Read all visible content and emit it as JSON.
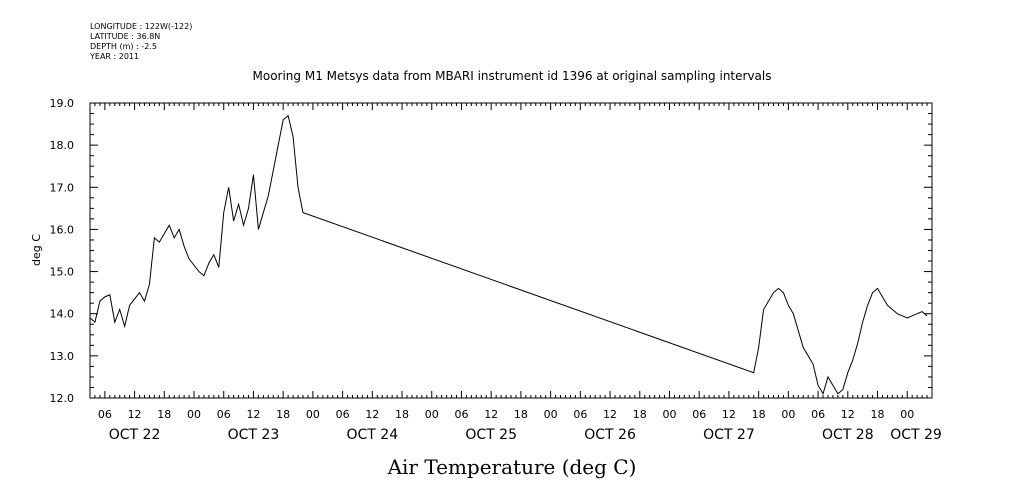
{
  "metadata": {
    "longitude": "LONGITUDE : 122W(-122)",
    "latitude": "LATITUDE : 36.8N",
    "depth": "DEPTH (m) : -2.5",
    "year": "YEAR : 2011"
  },
  "chart_data": {
    "type": "line",
    "title": "Mooring M1 Metsys data from MBARI instrument id 1396 at original sampling intervals",
    "xlabel": "Air Temperature (deg C)",
    "ylabel": "deg C",
    "ylim": [
      12.0,
      19.0
    ],
    "xlim": [
      "2011-10-22T03:00",
      "2011-10-29T05:00"
    ],
    "y_ticks": [
      "12.0",
      "13.0",
      "14.0",
      "15.0",
      "16.0",
      "17.0",
      "18.0",
      "19.0"
    ],
    "x_hour_ticks": [
      "06",
      "12",
      "18",
      "00",
      "06",
      "12",
      "18",
      "00",
      "06",
      "12",
      "18",
      "00",
      "06",
      "12",
      "18",
      "00",
      "06",
      "12",
      "18",
      "00",
      "06",
      "12",
      "18",
      "00",
      "06",
      "12",
      "18",
      "00",
      "06",
      "12",
      "18",
      "00"
    ],
    "x_day_labels": [
      "OCT 22",
      "OCT 23",
      "OCT 24",
      "OCT 25",
      "OCT 26",
      "OCT 27",
      "OCT 28",
      "OCT 29"
    ],
    "grid": false,
    "series": [
      {
        "x": [
          "2011-10-22T03:00",
          "2011-10-22T04:00",
          "2011-10-22T05:00",
          "2011-10-22T06:00",
          "2011-10-22T07:00",
          "2011-10-22T08:00",
          "2011-10-22T09:00",
          "2011-10-22T10:00",
          "2011-10-22T11:00",
          "2011-10-22T12:00",
          "2011-10-22T13:00",
          "2011-10-22T14:00",
          "2011-10-22T15:00",
          "2011-10-22T16:00",
          "2011-10-22T17:00",
          "2011-10-22T18:00",
          "2011-10-22T19:00",
          "2011-10-22T20:00",
          "2011-10-22T21:00",
          "2011-10-22T22:00",
          "2011-10-22T23:00",
          "2011-10-23T00:00",
          "2011-10-23T01:00",
          "2011-10-23T02:00",
          "2011-10-23T03:00",
          "2011-10-23T04:00",
          "2011-10-23T05:00",
          "2011-10-23T06:00",
          "2011-10-23T07:00",
          "2011-10-23T08:00",
          "2011-10-23T09:00",
          "2011-10-23T10:00",
          "2011-10-23T11:00",
          "2011-10-23T12:00",
          "2011-10-23T13:00",
          "2011-10-23T14:00",
          "2011-10-23T15:00",
          "2011-10-23T16:00",
          "2011-10-23T17:00",
          "2011-10-23T18:00",
          "2011-10-23T19:00",
          "2011-10-23T20:00",
          "2011-10-23T21:00",
          "2011-10-23T22:00",
          "2011-10-27T17:00",
          "2011-10-27T18:00",
          "2011-10-27T19:00",
          "2011-10-27T20:00",
          "2011-10-27T21:00",
          "2011-10-27T22:00",
          "2011-10-27T23:00",
          "2011-10-28T00:00",
          "2011-10-28T01:00",
          "2011-10-28T02:00",
          "2011-10-28T03:00",
          "2011-10-28T04:00",
          "2011-10-28T05:00",
          "2011-10-28T06:00",
          "2011-10-28T07:00",
          "2011-10-28T08:00",
          "2011-10-28T09:00",
          "2011-10-28T10:00",
          "2011-10-28T11:00",
          "2011-10-28T12:00",
          "2011-10-28T13:00",
          "2011-10-28T14:00",
          "2011-10-28T15:00",
          "2011-10-28T16:00",
          "2011-10-28T17:00",
          "2011-10-28T18:00",
          "2011-10-28T19:00",
          "2011-10-28T20:00",
          "2011-10-28T21:00",
          "2011-10-28T22:00",
          "2011-10-28T23:00",
          "2011-10-29T00:00",
          "2011-10-29T01:00",
          "2011-10-29T02:00",
          "2011-10-29T03:00",
          "2011-10-29T04:00"
        ],
        "values": [
          13.9,
          13.8,
          14.3,
          14.4,
          14.45,
          13.8,
          14.1,
          13.7,
          14.2,
          14.35,
          14.5,
          14.3,
          14.7,
          15.8,
          15.7,
          15.9,
          16.1,
          15.8,
          16.0,
          15.6,
          15.3,
          15.15,
          15.0,
          14.9,
          15.2,
          15.4,
          15.1,
          16.4,
          17.0,
          16.2,
          16.6,
          16.1,
          16.5,
          17.3,
          16.0,
          16.4,
          16.8,
          17.4,
          18.0,
          18.6,
          18.7,
          18.2,
          17.0,
          16.4,
          12.6,
          13.2,
          14.1,
          14.3,
          14.5,
          14.6,
          14.5,
          14.2,
          14.0,
          13.6,
          13.2,
          13.0,
          12.8,
          12.3,
          12.1,
          12.5,
          12.3,
          12.1,
          12.2,
          12.6,
          12.9,
          13.3,
          13.8,
          14.2,
          14.5,
          14.6,
          14.4,
          14.2,
          14.1,
          14.0,
          13.95,
          13.9,
          13.95,
          14.0,
          14.05,
          13.95
        ]
      }
    ]
  }
}
